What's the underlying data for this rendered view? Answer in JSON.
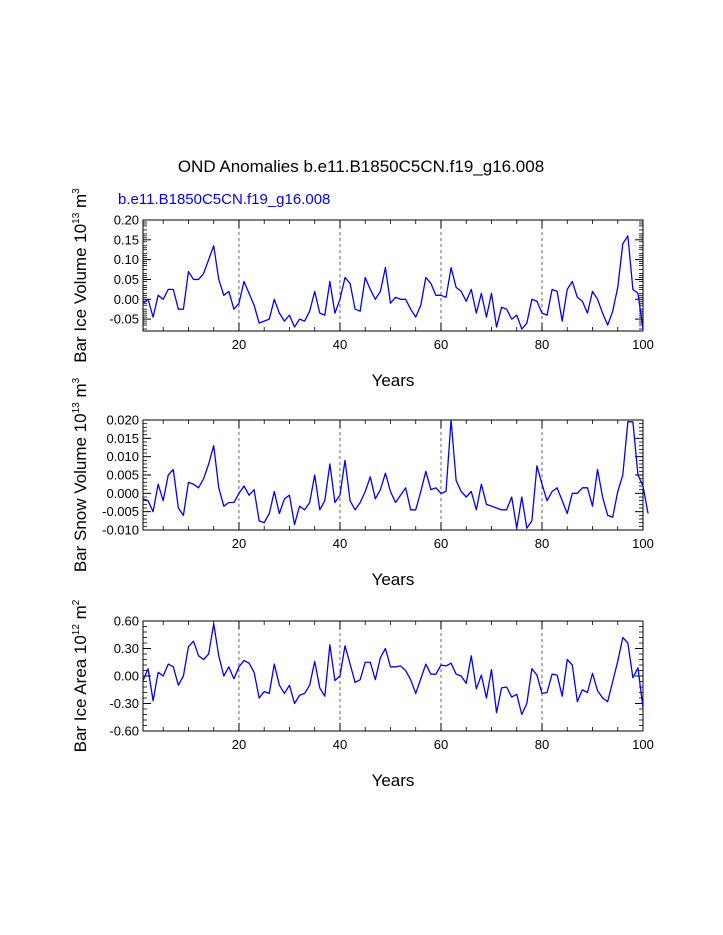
{
  "figure": {
    "title": "OND Anomalies b.e11.B1850C5CN.f19_g16.008",
    "subtitle": "b.e11.B1850C5CN.f19_g16.008",
    "subtitle_color": "#0000ff",
    "line_color": "#0000ff"
  },
  "chart_data": [
    {
      "type": "line",
      "ylabel_main": "Bar Ice Volume 10",
      "ylabel_exp": "13",
      "ylabel_unit": " m",
      "ylabel_unit_exp": "3",
      "xlabel": "Years",
      "xlim": [
        1,
        100
      ],
      "ylim": [
        -0.08,
        0.2
      ],
      "yticks": [
        -0.05,
        0.0,
        0.05,
        0.1,
        0.15,
        0.2
      ],
      "ytick_labels": [
        "-0.05",
        "0.00",
        "0.05",
        "0.10",
        "0.15",
        "0.20"
      ],
      "yminor": [
        -0.075,
        -0.065,
        -0.06,
        -0.055,
        -0.045,
        -0.04,
        -0.035,
        -0.03,
        -0.025,
        -0.015,
        -0.01,
        -0.005,
        0.005,
        0.01,
        0.015,
        0.025,
        0.03,
        0.035,
        0.045,
        0.055,
        0.06,
        0.065,
        0.075,
        0.085,
        0.09,
        0.095,
        0.105,
        0.11,
        0.115,
        0.125,
        0.13,
        0.135,
        0.145,
        0.155,
        0.16,
        0.165,
        0.175,
        0.185,
        0.19,
        0.195
      ],
      "xticks": [
        20,
        40,
        60,
        80,
        100
      ],
      "xtick_labels": [
        "20",
        "40",
        "60",
        "80",
        "100"
      ],
      "x_start": 1,
      "values": [
        -0.01,
        0.0,
        -0.045,
        0.01,
        0.0,
        0.025,
        0.025,
        -0.025,
        -0.025,
        0.07,
        0.05,
        0.05,
        0.065,
        0.1,
        0.135,
        0.05,
        0.01,
        0.02,
        -0.025,
        -0.01,
        0.045,
        0.015,
        -0.015,
        -0.06,
        -0.055,
        -0.05,
        0.0,
        -0.035,
        -0.055,
        -0.04,
        -0.07,
        -0.05,
        -0.055,
        -0.03,
        0.02,
        -0.035,
        -0.04,
        0.045,
        -0.035,
        0.0,
        0.055,
        0.04,
        -0.025,
        -0.03,
        0.055,
        0.025,
        0.0,
        0.02,
        0.08,
        -0.01,
        0.005,
        0.0,
        0.0,
        -0.025,
        -0.045,
        -0.015,
        0.055,
        0.04,
        0.01,
        0.01,
        0.005,
        0.08,
        0.03,
        0.02,
        -0.005,
        0.025,
        -0.035,
        0.015,
        -0.045,
        0.015,
        -0.07,
        -0.02,
        -0.025,
        -0.05,
        -0.04,
        -0.075,
        -0.06,
        0.0,
        -0.005,
        -0.035,
        -0.04,
        0.025,
        0.02,
        -0.055,
        0.025,
        0.045,
        0.005,
        -0.005,
        -0.035,
        0.02,
        0.0,
        -0.035,
        -0.065,
        -0.03,
        0.03,
        0.14,
        0.16,
        0.025,
        0.015,
        -0.075
      ]
    },
    {
      "type": "line",
      "ylabel_main": "Bar Snow Volume 10",
      "ylabel_exp": "13",
      "ylabel_unit": " m",
      "ylabel_unit_exp": "3",
      "xlabel": "Years",
      "xlim": [
        1,
        100
      ],
      "ylim": [
        -0.01,
        0.02
      ],
      "yticks": [
        -0.01,
        -0.005,
        0.0,
        0.005,
        0.01,
        0.015,
        0.02
      ],
      "ytick_labels": [
        "-0.010",
        "-0.005",
        "0.000",
        "0.005",
        "0.010",
        "0.015",
        "0.020"
      ],
      "yminor": [
        -0.009,
        -0.008,
        -0.007,
        -0.006,
        -0.004,
        -0.003,
        -0.002,
        -0.001,
        0.001,
        0.002,
        0.003,
        0.004,
        0.006,
        0.007,
        0.008,
        0.009,
        0.011,
        0.012,
        0.013,
        0.014,
        0.016,
        0.017,
        0.018,
        0.019
      ],
      "xticks": [
        20,
        40,
        60,
        80,
        100
      ],
      "xtick_labels": [
        "20",
        "40",
        "60",
        "80",
        "100"
      ],
      "x_start": 1,
      "values": [
        -0.0015,
        -0.002,
        -0.005,
        0.0025,
        -0.002,
        0.005,
        0.0065,
        -0.004,
        -0.006,
        0.003,
        0.0025,
        0.0015,
        0.004,
        0.008,
        0.013,
        0.0015,
        -0.0035,
        -0.0025,
        -0.0025,
        0.0,
        0.002,
        -0.0005,
        0.001,
        -0.0075,
        -0.008,
        -0.0055,
        0.0005,
        -0.0055,
        -0.0015,
        -0.0005,
        -0.0085,
        -0.0035,
        -0.0045,
        -0.0025,
        0.005,
        -0.0045,
        -0.002,
        0.008,
        -0.0025,
        -0.0005,
        0.009,
        -0.002,
        -0.0045,
        -0.0025,
        0.0005,
        0.0045,
        -0.0015,
        0.001,
        0.0055,
        0.0005,
        -0.0025,
        -0.0005,
        0.0015,
        -0.0045,
        -0.0045,
        0.0005,
        0.006,
        0.001,
        0.0015,
        0.0,
        0.0005,
        0.02,
        0.0035,
        0.0005,
        -0.001,
        0.0005,
        -0.0045,
        0.0025,
        -0.003,
        -0.0035,
        -0.004,
        -0.0045,
        -0.0045,
        -0.001,
        -0.0095,
        -0.001,
        -0.0095,
        -0.0075,
        0.0075,
        0.0025,
        -0.002,
        0.0005,
        0.0015,
        -0.002,
        -0.0055,
        0.0,
        0.0,
        0.0015,
        0.0015,
        -0.0035,
        0.0065,
        -0.001,
        -0.006,
        -0.0065,
        0.0005,
        0.005,
        0.0195,
        0.0195,
        0.005,
        0.002,
        -0.0055
      ]
    },
    {
      "type": "line",
      "ylabel_main": "Bar Ice Area 10",
      "ylabel_exp": "12",
      "ylabel_unit": " m",
      "ylabel_unit_exp": "2",
      "xlabel": "Years",
      "xlim": [
        1,
        100
      ],
      "ylim": [
        -0.6,
        0.6
      ],
      "yticks": [
        -0.6,
        -0.3,
        0.0,
        0.3,
        0.6
      ],
      "ytick_labels": [
        "-0.60",
        "-0.30",
        "0.00",
        "0.30",
        "0.60"
      ],
      "yminor": [
        -0.54,
        -0.48,
        -0.42,
        -0.36,
        -0.24,
        -0.18,
        -0.12,
        -0.06,
        0.06,
        0.12,
        0.18,
        0.24,
        0.36,
        0.42,
        0.48,
        0.54
      ],
      "xticks": [
        20,
        40,
        60,
        80,
        100
      ],
      "xtick_labels": [
        "20",
        "40",
        "60",
        "80",
        "100"
      ],
      "x_start": 1,
      "values": [
        -0.05,
        0.08,
        -0.27,
        0.04,
        0.0,
        0.13,
        0.1,
        -0.1,
        0.0,
        0.32,
        0.38,
        0.22,
        0.18,
        0.24,
        0.57,
        0.22,
        0.0,
        0.1,
        -0.03,
        0.1,
        0.17,
        0.14,
        0.04,
        -0.24,
        -0.17,
        -0.19,
        0.13,
        -0.1,
        -0.19,
        -0.1,
        -0.3,
        -0.21,
        -0.19,
        -0.1,
        0.16,
        -0.13,
        -0.22,
        0.34,
        -0.05,
        0.0,
        0.33,
        0.13,
        -0.07,
        -0.04,
        0.15,
        0.15,
        -0.04,
        0.2,
        0.3,
        0.1,
        0.1,
        0.11,
        0.06,
        -0.04,
        -0.19,
        -0.03,
        0.13,
        0.02,
        0.02,
        0.12,
        0.11,
        0.14,
        0.02,
        0.0,
        -0.08,
        0.22,
        -0.14,
        0.01,
        -0.24,
        0.07,
        -0.4,
        -0.13,
        -0.12,
        -0.23,
        -0.2,
        -0.42,
        -0.3,
        0.08,
        0.01,
        -0.19,
        -0.18,
        0.02,
        0.01,
        -0.22,
        0.18,
        0.12,
        -0.28,
        -0.15,
        -0.18,
        0.03,
        -0.16,
        -0.24,
        -0.28,
        -0.06,
        0.16,
        0.42,
        0.36,
        -0.02,
        0.09,
        -0.35
      ]
    }
  ]
}
